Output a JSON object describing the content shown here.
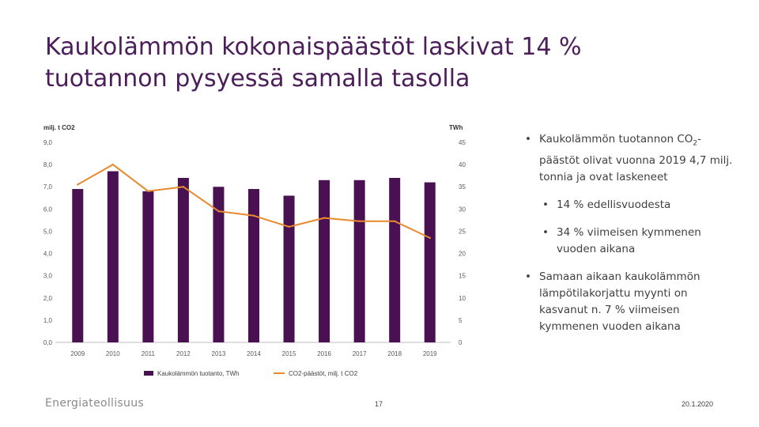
{
  "slide": {
    "title_line1": "Kaukolämmön kokonaispäästöt laskivat 14 %",
    "title_line2": "tuotannon pysyessä samalla tasolla",
    "logo_text": "Energiateollisuus",
    "page_number": "17",
    "date": "20.1.2020"
  },
  "bullets": {
    "b1_part1": "Kaukolämmön tuotannon CO",
    "b1_sub": "2",
    "b1_part2": "-päästöt olivat vuonna 2019 4,7 milj. tonnia ja ovat laskeneet",
    "b2": "14 % edellisvuodesta",
    "b3": "34 % viimeisen kymmenen vuoden aikana",
    "b4": "Samaan aikaan kaukolämmön lämpötilakorjattu myynti on kasvanut n. 7 % viimeisen kymmenen vuoden aikana"
  },
  "colors": {
    "bar": "#4a1152",
    "line": "#e8892e",
    "title": "#4b1e5a",
    "grid": "#d9d9d9"
  },
  "chart_data": {
    "type": "bar+line",
    "categories": [
      "2009",
      "2010",
      "2011",
      "2012",
      "2013",
      "2014",
      "2015",
      "2016",
      "2017",
      "2018",
      "2019"
    ],
    "series": [
      {
        "name": "Kaukolämmön tuotanto, TWh",
        "type": "bar",
        "axis": "right",
        "values": [
          34.5,
          38.5,
          34.0,
          37.0,
          35.0,
          34.5,
          33.0,
          36.5,
          36.5,
          37.0,
          36.0
        ]
      },
      {
        "name": "CO2-päästöt, milj. t CO2",
        "type": "line",
        "axis": "left",
        "values": [
          7.1,
          8.0,
          6.8,
          7.0,
          5.9,
          5.7,
          5.2,
          5.6,
          5.45,
          5.45,
          4.7
        ]
      }
    ],
    "y_left_label": "milj. t CO2",
    "y_right_label": "TWh",
    "y_left_ticks": [
      "0,0",
      "1,0",
      "2,0",
      "3,0",
      "4,0",
      "5,0",
      "6,0",
      "7,0",
      "8,0",
      "9,0"
    ],
    "y_right_ticks": [
      "0",
      "5",
      "10",
      "15",
      "20",
      "25",
      "30",
      "35",
      "40",
      "45"
    ],
    "y_left_range": [
      0,
      9
    ],
    "y_right_range": [
      0,
      45
    ],
    "legend_position": "bottom",
    "grid": false
  }
}
